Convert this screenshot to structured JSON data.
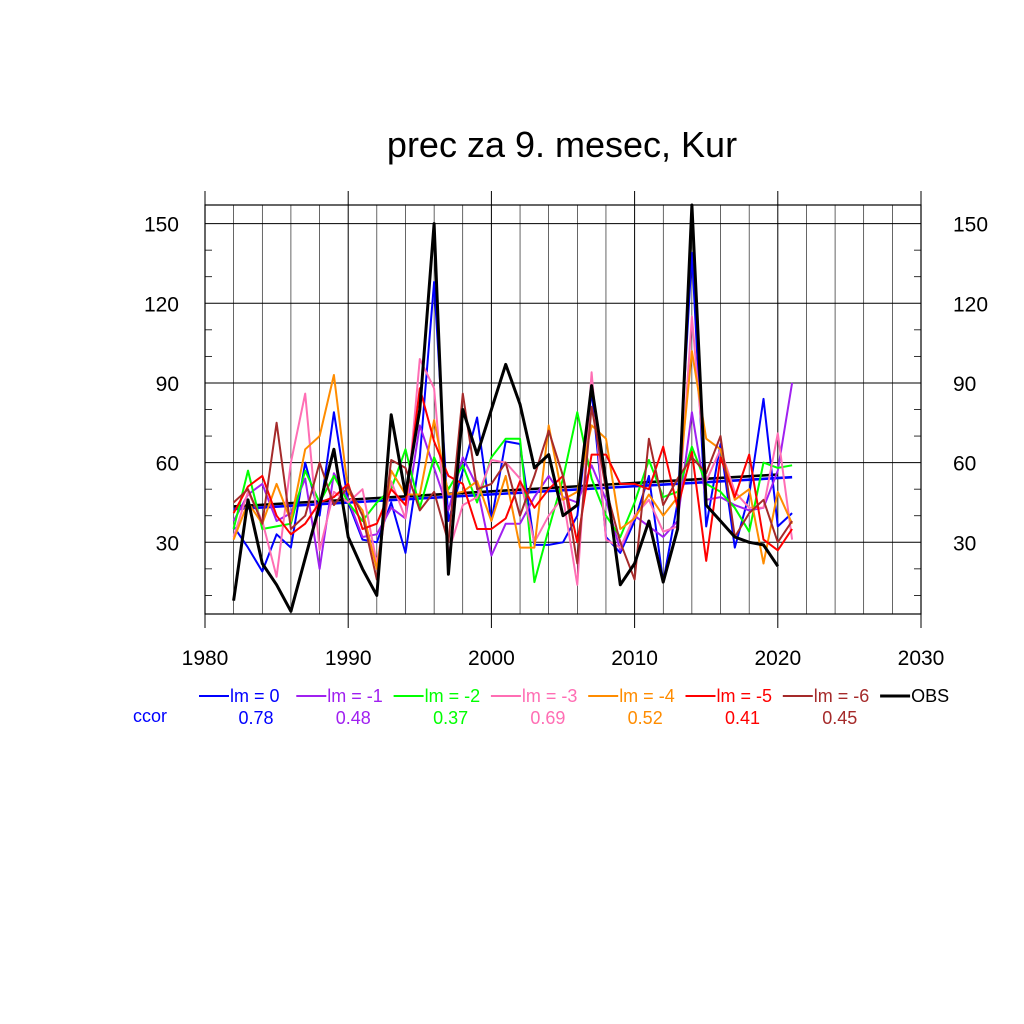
{
  "chart_data": {
    "type": "line",
    "title": "prec za 9. mesec, Kur",
    "xlabel": "",
    "ylabel": "",
    "xlim": [
      1980,
      2030
    ],
    "ylim": [
      3,
      157
    ],
    "x_ticks": [
      1980,
      1990,
      2000,
      2010,
      2020,
      2030
    ],
    "y_ticks": [
      30,
      60,
      90,
      120,
      150
    ],
    "grid": true,
    "legend_position": "bottom",
    "ccor_label": "ccor",
    "series": [
      {
        "name": "lm = 0",
        "color": "#0000ff",
        "ccor": "0.78",
        "x": [
          1982,
          1983,
          1984,
          1985,
          1986,
          1987,
          1988,
          1989,
          1990,
          1991,
          1992,
          1993,
          1994,
          1995,
          1996,
          1997,
          1998,
          1999,
          2000,
          2001,
          2002,
          2003,
          2004,
          2005,
          2006,
          2007,
          2008,
          2009,
          2010,
          2011,
          2012,
          2013,
          2014,
          2015,
          2016,
          2017,
          2018,
          2019,
          2020,
          2021
        ],
        "y": [
          36,
          28,
          19,
          33,
          28,
          60,
          40,
          79,
          45,
          31,
          30,
          45,
          26,
          62,
          128,
          38,
          57,
          77,
          38,
          68,
          67,
          29,
          29,
          30,
          40,
          87,
          32,
          26,
          38,
          55,
          15,
          45,
          139,
          36,
          67,
          28,
          48,
          84,
          36,
          41
        ]
      },
      {
        "name": "lm = -1",
        "color": "#a020f0",
        "ccor": "0.48",
        "x": [
          1982,
          1983,
          1984,
          1985,
          1986,
          1987,
          1988,
          1989,
          1990,
          1991,
          1992,
          1993,
          1994,
          1995,
          1996,
          1997,
          1998,
          1999,
          2000,
          2001,
          2002,
          2003,
          2004,
          2005,
          2006,
          2007,
          2008,
          2009,
          2010,
          2011,
          2012,
          2013,
          2014,
          2015,
          2016,
          2017,
          2018,
          2019,
          2020,
          2021
        ],
        "y": [
          38,
          48,
          52,
          38,
          41,
          54,
          20,
          56,
          46,
          32,
          33,
          43,
          39,
          74,
          58,
          42,
          62,
          51,
          25,
          37,
          37,
          47,
          55,
          47,
          45,
          59,
          46,
          27,
          40,
          36,
          32,
          38,
          79,
          46,
          47,
          44,
          42,
          43,
          57,
          90
        ]
      },
      {
        "name": "lm = -2",
        "color": "#00ff00",
        "ccor": "0.37",
        "x": [
          1982,
          1983,
          1984,
          1985,
          1986,
          1987,
          1988,
          1989,
          1990,
          1991,
          1992,
          1993,
          1994,
          1995,
          1996,
          1997,
          1998,
          1999,
          2000,
          2001,
          2002,
          2003,
          2004,
          2005,
          2006,
          2007,
          2008,
          2009,
          2010,
          2011,
          2012,
          2013,
          2014,
          2015,
          2016,
          2017,
          2018,
          2019,
          2020,
          2021
        ],
        "y": [
          35,
          57,
          35,
          36,
          37,
          57,
          45,
          55,
          45,
          38,
          45,
          50,
          65,
          43,
          62,
          50,
          59,
          45,
          62,
          69,
          69,
          15,
          35,
          54,
          79,
          54,
          40,
          32,
          45,
          61,
          47,
          49,
          66,
          52,
          49,
          43,
          34,
          60,
          58,
          59
        ]
      },
      {
        "name": "lm = -3",
        "color": "#ff6eb4",
        "ccor": "0.69",
        "x": [
          1982,
          1983,
          1984,
          1985,
          1986,
          1987,
          1988,
          1989,
          1990,
          1991,
          1992,
          1993,
          1994,
          1995,
          1996,
          1997,
          1998,
          1999,
          2000,
          2001,
          2002,
          2003,
          2004,
          2005,
          2006,
          2007,
          2008,
          2009,
          2010,
          2011,
          2012,
          2013,
          2014,
          2015,
          2016,
          2017,
          2018,
          2019,
          2020,
          2021
        ],
        "y": [
          32,
          49,
          38,
          17,
          60,
          86,
          27,
          49,
          45,
          50,
          22,
          53,
          39,
          99,
          88,
          26,
          44,
          47,
          61,
          60,
          54,
          30,
          40,
          47,
          14,
          94,
          31,
          28,
          40,
          46,
          34,
          36,
          115,
          53,
          65,
          49,
          43,
          43,
          71,
          31
        ]
      },
      {
        "name": "lm = -4",
        "color": "#ff8c00",
        "ccor": "0.52",
        "x": [
          1982,
          1983,
          1984,
          1985,
          1986,
          1987,
          1988,
          1989,
          1990,
          1991,
          1992,
          1993,
          1994,
          1995,
          1996,
          1997,
          1998,
          1999,
          2000,
          2001,
          2002,
          2003,
          2004,
          2005,
          2006,
          2007,
          2008,
          2009,
          2010,
          2011,
          2012,
          2013,
          2014,
          2015,
          2016,
          2017,
          2018,
          2019,
          2020,
          2021
        ],
        "y": [
          31,
          45,
          37,
          52,
          38,
          65,
          70,
          93,
          49,
          42,
          20,
          57,
          48,
          48,
          76,
          48,
          49,
          53,
          38,
          55,
          28,
          28,
          74,
          46,
          49,
          74,
          69,
          35,
          39,
          48,
          40,
          47,
          102,
          69,
          65,
          46,
          50,
          22,
          49,
          37
        ]
      },
      {
        "name": "lm = -5",
        "color": "#ff0000",
        "ccor": "0.41",
        "x": [
          1982,
          1983,
          1984,
          1985,
          1986,
          1987,
          1988,
          1989,
          1990,
          1991,
          1992,
          1993,
          1994,
          1995,
          1996,
          1997,
          1998,
          1999,
          2000,
          2001,
          2002,
          2003,
          2004,
          2005,
          2006,
          2007,
          2008,
          2009,
          2010,
          2011,
          2012,
          2013,
          2014,
          2015,
          2016,
          2017,
          2018,
          2019,
          2020,
          2021
        ],
        "y": [
          41,
          51,
          55,
          40,
          33,
          37,
          45,
          47,
          52,
          35,
          37,
          50,
          44,
          88,
          68,
          55,
          52,
          35,
          35,
          39,
          53,
          43,
          50,
          55,
          30,
          63,
          63,
          52,
          52,
          50,
          66,
          43,
          64,
          23,
          62,
          47,
          63,
          31,
          27,
          35
        ]
      },
      {
        "name": "lm = -6",
        "color": "#a52a2a",
        "ccor": "0.45",
        "x": [
          1982,
          1983,
          1984,
          1985,
          1986,
          1987,
          1988,
          1989,
          1990,
          1991,
          1992,
          1993,
          1994,
          1995,
          1996,
          1997,
          1998,
          1999,
          2000,
          2001,
          2002,
          2003,
          2004,
          2005,
          2006,
          2007,
          2008,
          2009,
          2010,
          2011,
          2012,
          2013,
          2014,
          2015,
          2016,
          2017,
          2018,
          2019,
          2020,
          2021
        ],
        "y": [
          45,
          50,
          37,
          75,
          35,
          40,
          60,
          44,
          51,
          40,
          16,
          61,
          58,
          42,
          49,
          30,
          86,
          50,
          52,
          60,
          40,
          55,
          72,
          55,
          22,
          81,
          50,
          30,
          16,
          69,
          44,
          54,
          62,
          56,
          70,
          32,
          41,
          46,
          30,
          38
        ]
      },
      {
        "name": "OBS",
        "color": "#000000",
        "ccor": "",
        "x": [
          1982,
          1983,
          1984,
          1985,
          1986,
          1987,
          1988,
          1989,
          1990,
          1991,
          1992,
          1993,
          1994,
          1995,
          1996,
          1997,
          1998,
          1999,
          2000,
          2001,
          2002,
          2003,
          2004,
          2005,
          2006,
          2007,
          2008,
          2009,
          2010,
          2011,
          2012,
          2013,
          2014,
          2015,
          2016,
          2017,
          2018,
          2019,
          2020
        ],
        "y": [
          8,
          46,
          22,
          14,
          4,
          24,
          44,
          65,
          32,
          20,
          10,
          78,
          48,
          80,
          150,
          18,
          80,
          63,
          80,
          97,
          82,
          58,
          63,
          40,
          44,
          89,
          53,
          14,
          22,
          38,
          15,
          35,
          157,
          44,
          38,
          32,
          30,
          29,
          21
        ]
      }
    ],
    "trend_lines": [
      {
        "color": "#0000ff",
        "x": [
          1982,
          2021
        ],
        "y": [
          42.5,
          54.5
        ]
      },
      {
        "color": "#000000",
        "x": [
          1982,
          2020
        ],
        "y": [
          43.5,
          55.5
        ]
      }
    ]
  }
}
